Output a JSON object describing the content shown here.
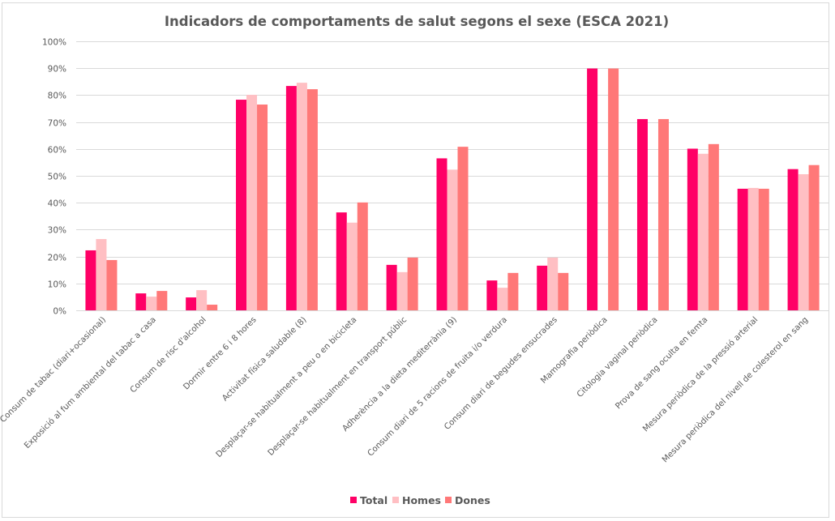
{
  "chart_data": {
    "type": "bar",
    "title": "Indicadors de comportaments de salut segons el sexe (ESCA 2021)",
    "xlabel": "",
    "ylabel": "",
    "ylim": [
      0,
      100
    ],
    "y_unit": "%",
    "y_ticks": [
      "0%",
      "10%",
      "20%",
      "30%",
      "40%",
      "50%",
      "60%",
      "70%",
      "80%",
      "90%",
      "100%"
    ],
    "grid": true,
    "legend_position": "bottom",
    "categories": [
      "Consum de tabac (diari+ocasional)",
      "Exposició al fum ambiental del tabac a casa",
      "Consum de risc d'alcohol",
      "Dormir entre 6 i 8 hores",
      "Activitat física saludable (8)",
      "Desplaçar-se habitualment a peu o en bicicleta",
      "Desplaçar-se habitualment en transport públic",
      "Adherència a la dieta mediterrània (9)",
      "Consum diari de 5 racions de fruita i/o verdura",
      "Consum diari de begudes ensucrades",
      "Mamografia periòdica",
      "Citologia vaginal periòdica",
      "Prova de sang oculta en femta",
      "Mesura periòdica de la pressió arterial",
      "Mesura periòdica del nivell de colesterol en sang"
    ],
    "series": [
      {
        "name": "Total",
        "color": "#ff0066",
        "values": [
          22.3,
          6.3,
          4.8,
          78.3,
          83.4,
          36.4,
          16.9,
          56.5,
          11.1,
          16.6,
          89.9,
          71.1,
          60.1,
          45.2,
          52.5
        ]
      },
      {
        "name": "Homes",
        "color": "#ffbfc3",
        "values": [
          26.5,
          5.1,
          7.5,
          80.1,
          84.6,
          32.6,
          14.2,
          52.3,
          8.4,
          19.6,
          null,
          null,
          58.2,
          45.5,
          50.6
        ]
      },
      {
        "name": "Dones",
        "color": "#ff7878",
        "values": [
          18.7,
          7.2,
          2.1,
          76.5,
          82.2,
          40.1,
          19.6,
          60.8,
          13.9,
          13.9,
          89.9,
          71.1,
          61.8,
          45.2,
          54.0
        ]
      }
    ]
  }
}
